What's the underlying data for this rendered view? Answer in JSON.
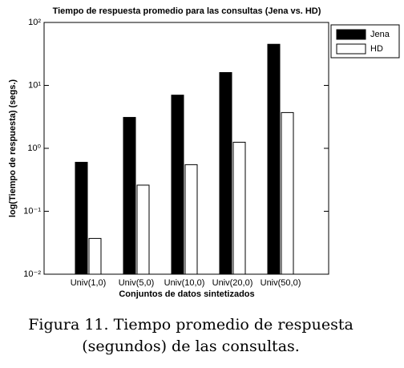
{
  "chart_data": {
    "type": "bar",
    "title": "Tiempo de respuesta promedio para las consultas (Jena vs. HD)",
    "x_label": "Conjuntos de datos sintetizados",
    "y_label": "log(Tiempo de respuesta) (segs.)",
    "categories": [
      "Univ(1,0)",
      "Univ(5,0)",
      "Univ(10,0)",
      "Univ(20,0)",
      "Univ(50,0)"
    ],
    "series": [
      {
        "name": "Jena",
        "color": "#000000",
        "values": [
          0.6,
          3.1,
          7,
          16,
          45
        ]
      },
      {
        "name": "HD",
        "color": "#ffffff",
        "values": [
          0.037,
          0.26,
          0.55,
          1.25,
          3.7
        ]
      }
    ],
    "log_scale": true,
    "ylim": [
      0.01,
      100
    ],
    "yticks": [
      {
        "value": 0.01,
        "label": "10⁻²"
      },
      {
        "value": 0.1,
        "label": "10⁻¹"
      },
      {
        "value": 1,
        "label": "10⁰"
      },
      {
        "value": 10,
        "label": "10¹"
      },
      {
        "value": 100,
        "label": "10²"
      }
    ],
    "legend": "top-right",
    "caption": [
      "Figura 11. Tiempo promedio de respuesta",
      "(segundos) de las consultas."
    ]
  }
}
